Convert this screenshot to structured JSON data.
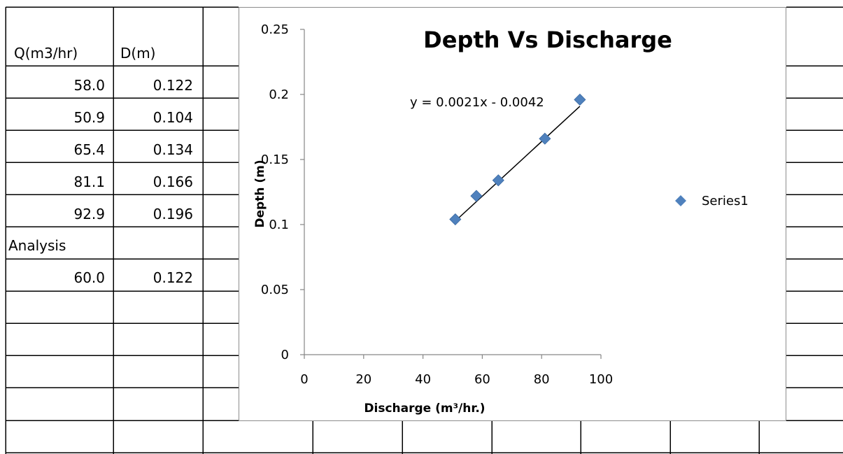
{
  "table": {
    "header": {
      "q": "Q(m3/hr)",
      "d": "D(m)"
    },
    "rows": [
      {
        "q": "58.0",
        "d": "0.122"
      },
      {
        "q": "50.9",
        "d": "0.104"
      },
      {
        "q": "65.4",
        "d": "0.134"
      },
      {
        "q": "81.1",
        "d": "0.166"
      },
      {
        "q": "92.9",
        "d": "0.196"
      }
    ],
    "analysis_label": "Analysis",
    "analysis_row": {
      "q": "60.0",
      "d": "0.122"
    }
  },
  "chart_data": {
    "type": "scatter",
    "title": "Depth Vs Discharge",
    "xlabel": "Discharge (m³/hr.)",
    "ylabel": "Depth (m)",
    "xlim": [
      0,
      100
    ],
    "ylim": [
      0,
      0.25
    ],
    "x_ticks": [
      "0",
      "20",
      "40",
      "60",
      "80",
      "100"
    ],
    "y_ticks": [
      "0",
      "0.05",
      "0.1",
      "0.15",
      "0.2",
      "0.25"
    ],
    "series": [
      {
        "name": "Series1",
        "color": "#4f81bd",
        "marker": "diamond",
        "x": [
          58.0,
          50.9,
          65.4,
          81.1,
          92.9
        ],
        "y": [
          0.122,
          0.104,
          0.134,
          0.166,
          0.196
        ]
      }
    ],
    "trendline": {
      "type": "linear",
      "slope": 0.0021,
      "intercept": -0.0042,
      "color": "#000000",
      "equation": "y = 0.0021x - 0.0042"
    },
    "grid": false,
    "legend": "right"
  }
}
